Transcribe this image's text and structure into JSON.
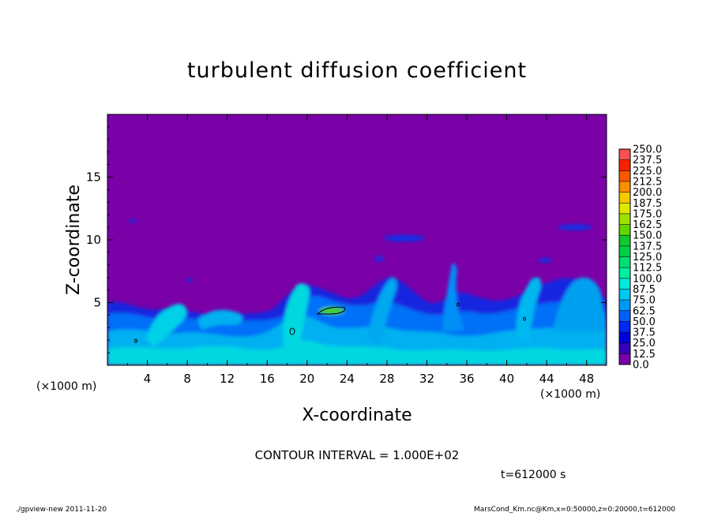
{
  "chart_data": {
    "type": "heatmap",
    "title": "turbulent diffusion coefficient",
    "xlabel": "X-coordinate",
    "ylabel": "Z-coordinate",
    "x_unit_label": "(×1000 m)",
    "xlim": [
      0,
      50
    ],
    "ylim": [
      0,
      20
    ],
    "x_ticks": [
      4,
      8,
      12,
      16,
      20,
      24,
      28,
      32,
      36,
      40,
      44,
      48
    ],
    "y_ticks": [
      5,
      10,
      15
    ],
    "contour_interval_label": "CONTOUR INTERVAL = 1.000E+02",
    "time_label": "t=612000 s",
    "colorbar": {
      "levels": [
        "0.0",
        "12.5",
        "25.0",
        "37.5",
        "50.0",
        "62.5",
        "75.0",
        "87.5",
        "100.0",
        "112.5",
        "125.0",
        "137.5",
        "150.0",
        "162.5",
        "175.0",
        "187.5",
        "200.0",
        "212.5",
        "225.0",
        "237.5",
        "250.0"
      ],
      "colors": [
        "#7a00a8",
        "#3800b8",
        "#0000d8",
        "#0028f0",
        "#0060f8",
        "#0098f8",
        "#00c8f0",
        "#00e8d8",
        "#00f0a0",
        "#00e070",
        "#00d048",
        "#10c830",
        "#60d800",
        "#a0e000",
        "#e0e800",
        "#f8c800",
        "#f89000",
        "#f85800",
        "#f82000",
        "#f85050"
      ],
      "background": "#7a00a8"
    }
  },
  "footer": {
    "left": "./gpview-new  2011-11-20",
    "right": "MarsCond_Km.nc@Km,x=0:50000,z=0:20000,t=612000"
  }
}
